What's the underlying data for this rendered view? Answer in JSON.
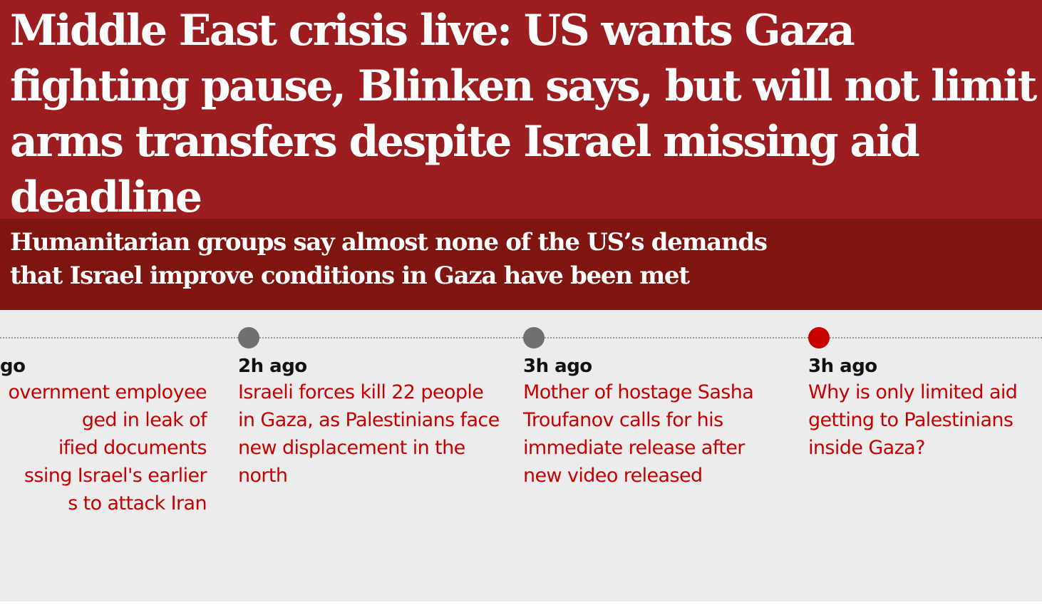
{
  "article": {
    "headline": "Middle East crisis live: US wants Gaza fighting pause, Blinken says, but will not limit arms transfers despite Israel missing aid deadline",
    "standfirst": "Humanitarian groups say almost none of the US’s demands that Israel improve conditions in Gaza have been met"
  },
  "timeline": {
    "items": [
      {
        "time": "go",
        "text": "overnment employee\nged in leak of\nified documents\nssing Israel's earlier\ns to attack Iran"
      },
      {
        "time": "2h ago",
        "text": "Israeli forces kill 22 people in Gaza, as Palestinians face new displacement in the north"
      },
      {
        "time": "3h ago",
        "text": "Mother of hostage Sasha Troufanov calls for his immediate release after new video released"
      },
      {
        "time": "3h ago",
        "text": "Why is only limited aid getting to Palestinians inside Gaza?"
      }
    ]
  },
  "colors": {
    "headline_bg": "#9b1d1f",
    "standfirst_bg": "#7e1510",
    "link": "#c70000",
    "dot": "#707070",
    "dot_latest": "#c70000"
  }
}
